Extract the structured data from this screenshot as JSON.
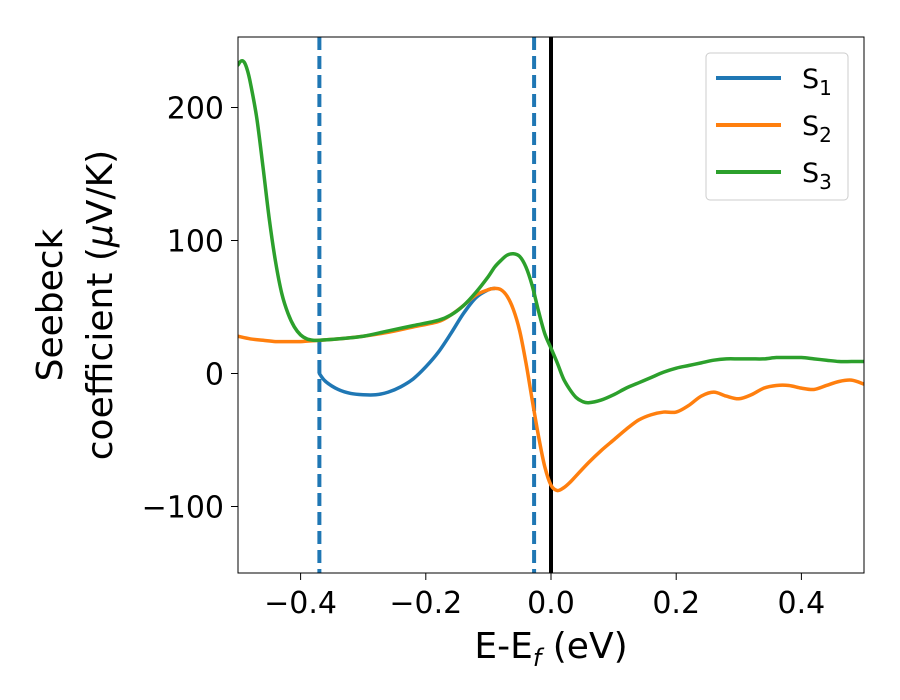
{
  "chart_data": {
    "type": "line",
    "title": "",
    "xlabel": {
      "main": "E-E",
      "sub": "f",
      "tail": " (eV)"
    },
    "ylabel": {
      "line1": "Seebeck",
      "line2_pre": "coefficient  (",
      "line2_mu": "μ",
      "line2_post": "V/K)"
    },
    "xlim": [
      -0.5,
      0.5
    ],
    "ylim": [
      -150,
      253
    ],
    "xticks": [
      -0.4,
      -0.2,
      0.0,
      0.2,
      0.4
    ],
    "xtick_labels": [
      "−0.4",
      "−0.2",
      "0.0",
      "0.2",
      "0.4"
    ],
    "yticks": [
      -100,
      0,
      100,
      200
    ],
    "ytick_labels": [
      "−100",
      "0",
      "100",
      "200"
    ],
    "grid": false,
    "legend_position": "top-right",
    "vlines": [
      {
        "x": -0.37,
        "style": "dashed",
        "color": "#1f77b4"
      },
      {
        "x": -0.027,
        "style": "dashed",
        "color": "#1f77b4"
      },
      {
        "x": 0.0,
        "style": "solid",
        "color": "#000000"
      }
    ],
    "series": [
      {
        "name": "S",
        "name_sub": "1",
        "color": "#1f77b4",
        "x": [
          -0.37,
          -0.36,
          -0.34,
          -0.32,
          -0.3,
          -0.28,
          -0.26,
          -0.24,
          -0.22,
          -0.2,
          -0.18,
          -0.16,
          -0.14,
          -0.12,
          -0.1,
          -0.09
        ],
        "y": [
          0,
          -6,
          -12,
          -15,
          -16,
          -16,
          -14,
          -10,
          -4,
          5,
          16,
          30,
          45,
          57,
          63,
          64
        ]
      },
      {
        "name": "S",
        "name_sub": "2",
        "color": "#ff7f0e",
        "x": [
          -0.5,
          -0.48,
          -0.46,
          -0.44,
          -0.42,
          -0.4,
          -0.37,
          -0.34,
          -0.3,
          -0.26,
          -0.22,
          -0.18,
          -0.16,
          -0.14,
          -0.12,
          -0.1,
          -0.09,
          -0.08,
          -0.07,
          -0.06,
          -0.05,
          -0.04,
          -0.03,
          -0.02,
          -0.01,
          0.0,
          0.01,
          0.02,
          0.03,
          0.04,
          0.06,
          0.08,
          0.1,
          0.12,
          0.14,
          0.16,
          0.18,
          0.2,
          0.22,
          0.24,
          0.26,
          0.28,
          0.3,
          0.32,
          0.34,
          0.36,
          0.38,
          0.4,
          0.42,
          0.44,
          0.46,
          0.48,
          0.5
        ],
        "y": [
          28,
          26,
          25,
          24,
          24,
          24,
          25,
          26,
          28,
          31,
          35,
          39,
          44,
          51,
          59,
          63,
          64,
          63,
          58,
          48,
          32,
          8,
          -20,
          -47,
          -70,
          -84,
          -88,
          -86,
          -82,
          -77,
          -67,
          -58,
          -50,
          -42,
          -35,
          -31,
          -29,
          -29,
          -24,
          -17,
          -14,
          -17,
          -19,
          -16,
          -11,
          -9,
          -9,
          -11,
          -12,
          -9,
          -6,
          -5,
          -8
        ]
      },
      {
        "name": "S",
        "name_sub": "3",
        "color": "#2ca02c",
        "x": [
          -0.5,
          -0.495,
          -0.49,
          -0.485,
          -0.48,
          -0.47,
          -0.46,
          -0.45,
          -0.44,
          -0.43,
          -0.42,
          -0.41,
          -0.4,
          -0.39,
          -0.38,
          -0.37,
          -0.34,
          -0.3,
          -0.26,
          -0.22,
          -0.18,
          -0.16,
          -0.14,
          -0.12,
          -0.1,
          -0.09,
          -0.08,
          -0.07,
          -0.06,
          -0.05,
          -0.04,
          -0.03,
          -0.02,
          -0.01,
          0.0,
          0.01,
          0.02,
          0.03,
          0.04,
          0.05,
          0.06,
          0.08,
          0.1,
          0.12,
          0.14,
          0.16,
          0.18,
          0.2,
          0.22,
          0.24,
          0.26,
          0.28,
          0.3,
          0.32,
          0.34,
          0.36,
          0.38,
          0.4,
          0.42,
          0.44,
          0.46,
          0.48,
          0.5
        ],
        "y": [
          232,
          235,
          234,
          228,
          218,
          192,
          155,
          116,
          84,
          60,
          45,
          35,
          29,
          26,
          25,
          25,
          26,
          28,
          32,
          36,
          40,
          44,
          51,
          61,
          73,
          80,
          85,
          89,
          90,
          88,
          80,
          66,
          47,
          30,
          19,
          8,
          -4,
          -12,
          -18,
          -21,
          -22,
          -20,
          -16,
          -11,
          -7,
          -3,
          1,
          4,
          6,
          8,
          10,
          11,
          11,
          11,
          11,
          12,
          12,
          12,
          11,
          10,
          9,
          9,
          9
        ]
      }
    ]
  }
}
